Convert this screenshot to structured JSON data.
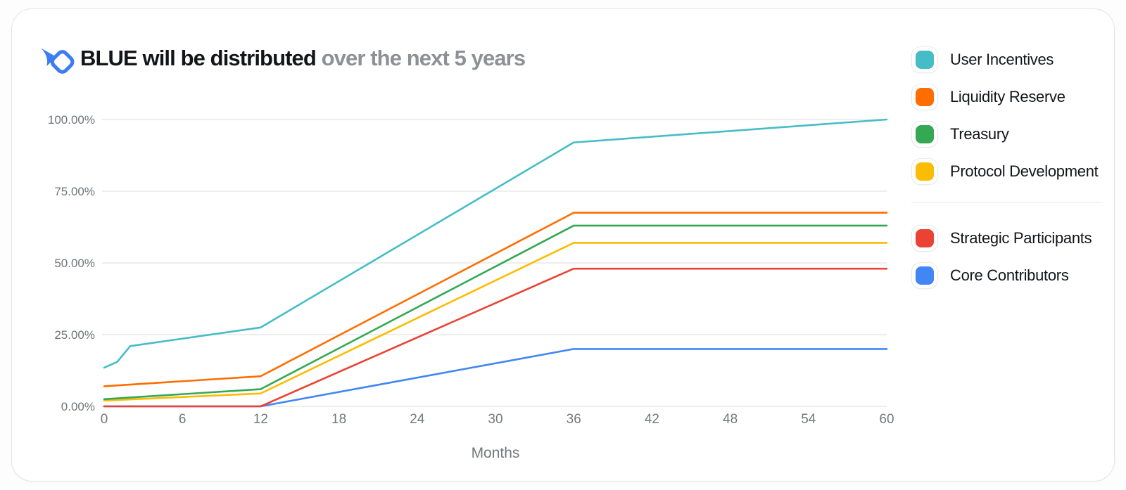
{
  "header": {
    "title_emphasis": "BLUE will be distributed",
    "title_rest": " over the next 5 years",
    "logo_icon": "bluefin-fish-icon",
    "logo_color": "#3d7df3"
  },
  "legend": {
    "groups": [
      {
        "items": [
          {
            "label": "User Incentives",
            "color": "#46BDC6"
          },
          {
            "label": "Liquidity Reserve",
            "color": "#FF6D01"
          },
          {
            "label": "Treasury",
            "color": "#34A853"
          },
          {
            "label": "Protocol Development",
            "color": "#FBBC04"
          }
        ]
      },
      {
        "items": [
          {
            "label": "Strategic Participants",
            "color": "#EA4335"
          },
          {
            "label": "Core Contributors",
            "color": "#4285F4"
          }
        ]
      }
    ]
  },
  "chart_data": {
    "type": "line",
    "title": "BLUE will be distributed over the next 5 years",
    "xlabel": "Months",
    "ylabel": "",
    "xlim": [
      0,
      60
    ],
    "ylim": [
      0,
      100
    ],
    "x_ticks": [
      0,
      6,
      12,
      18,
      24,
      30,
      36,
      42,
      48,
      54,
      60
    ],
    "y_ticks": [
      0,
      25,
      50,
      75,
      100
    ],
    "y_tick_labels": [
      "0.00%",
      "25.00%",
      "50.00%",
      "75.00%",
      "100.00%"
    ],
    "grid": "horizontal",
    "legend_position": "right",
    "colors": {
      "gridline": "#e8e9eb",
      "tick_text": "#74787d"
    },
    "series": [
      {
        "name": "User Incentives",
        "color": "#46BDC6",
        "points": [
          [
            0,
            13.5
          ],
          [
            1,
            15.5
          ],
          [
            2,
            21
          ],
          [
            12,
            27.5
          ],
          [
            36,
            92
          ],
          [
            60,
            100
          ]
        ]
      },
      {
        "name": "Liquidity Reserve",
        "color": "#FF6D01",
        "points": [
          [
            0,
            7
          ],
          [
            12,
            10.5
          ],
          [
            36,
            67.5
          ],
          [
            60,
            67.5
          ]
        ]
      },
      {
        "name": "Treasury",
        "color": "#34A853",
        "points": [
          [
            0,
            2.5
          ],
          [
            12,
            6
          ],
          [
            36,
            63
          ],
          [
            60,
            63
          ]
        ]
      },
      {
        "name": "Protocol Development",
        "color": "#FBBC04",
        "points": [
          [
            0,
            2
          ],
          [
            12,
            4.5
          ],
          [
            36,
            57
          ],
          [
            60,
            57
          ]
        ]
      },
      {
        "name": "Strategic Participants",
        "color": "#EA4335",
        "points": [
          [
            0,
            0
          ],
          [
            12,
            0
          ],
          [
            36,
            48
          ],
          [
            60,
            48
          ]
        ]
      },
      {
        "name": "Core Contributors",
        "color": "#4285F4",
        "points": [
          [
            0,
            0
          ],
          [
            12,
            0
          ],
          [
            36,
            20
          ],
          [
            60,
            20
          ]
        ]
      }
    ]
  }
}
